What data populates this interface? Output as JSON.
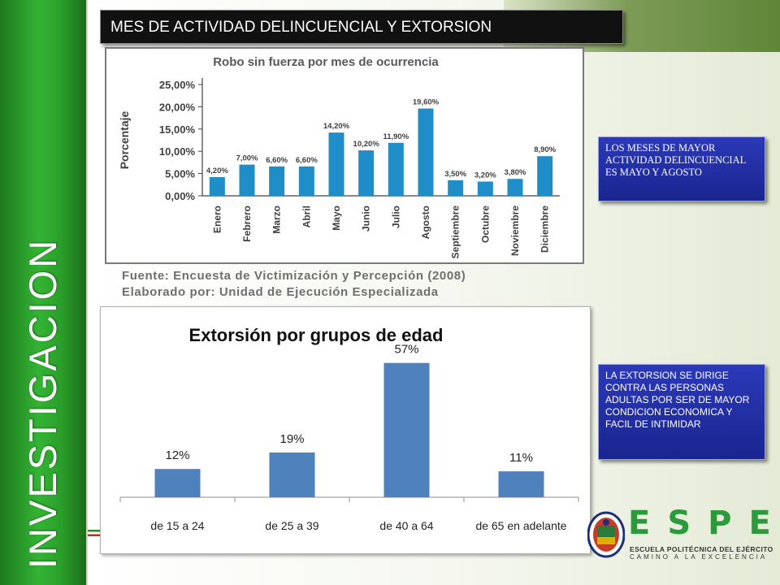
{
  "side_title": "INVESTIGACION",
  "header": "MES DE ACTIVIDAD DELINCUENCIAL Y EXTORSION",
  "source": {
    "line1": "Fuente: Encuesta de Victimización y Percepción (2008)",
    "line2": "Elaborado por: Unidad de Ejecución Especializada"
  },
  "notes": [
    "LOS MESES DE MAYOR ACTIVIDAD DELINCUENCIAL ES MAYO Y AGOSTO",
    "LA  EXTORSION  SE DIRIGE CONTRA LAS PERSONAS ADULTAS POR SER DE MAYOR CONDICION ECONOMICA Y FACIL DE INTIMIDAR"
  ],
  "logo": {
    "letters": "ESPE",
    "line1": "ESCUELA POLITÉCNICA DEL EJÉRCITO",
    "line2": "CAMINO A LA EXCELENCIA"
  },
  "colors": {
    "bar1": "#1f8dc8",
    "bar2": "#4f81bd"
  },
  "chart_data": [
    {
      "type": "bar",
      "title": "Robo sin fuerza por mes de ocurrencia",
      "ylabel": "Porcentaje",
      "xlabel": "",
      "categories": [
        "Enero",
        "Febrero",
        "Marzo",
        "Abril",
        "Mayo",
        "Junio",
        "Julio",
        "Agosto",
        "Septiembre",
        "Octubre",
        "Noviembre",
        "Diciembre"
      ],
      "values": [
        4.2,
        7.0,
        6.6,
        6.6,
        14.2,
        10.2,
        11.9,
        19.6,
        3.5,
        3.2,
        3.8,
        8.9
      ],
      "value_labels": [
        "4,20%",
        "7,00%",
        "6,60%",
        "6,60%",
        "14,20%",
        "10,20%",
        "11,90%",
        "19,60%",
        "3,50%",
        "3,20%",
        "3,80%",
        "8,90%"
      ],
      "ylim": [
        0,
        25
      ],
      "yticks": [
        "0,00%",
        "5,00%",
        "10,00%",
        "15,00%",
        "20,00%",
        "25,00%"
      ],
      "grid": false,
      "legend": "none"
    },
    {
      "type": "bar",
      "title": "Extorsión por grupos de edad",
      "xlabel": "",
      "ylabel": "",
      "categories": [
        "de 15 a 24",
        "de 25 a 39",
        "de 40 a 64",
        "de 65 en adelante"
      ],
      "values": [
        12,
        19,
        57,
        11
      ],
      "value_labels": [
        "12%",
        "19%",
        "57%",
        "11%"
      ],
      "ylim": [
        0,
        60
      ],
      "grid": false,
      "legend": "none"
    }
  ]
}
